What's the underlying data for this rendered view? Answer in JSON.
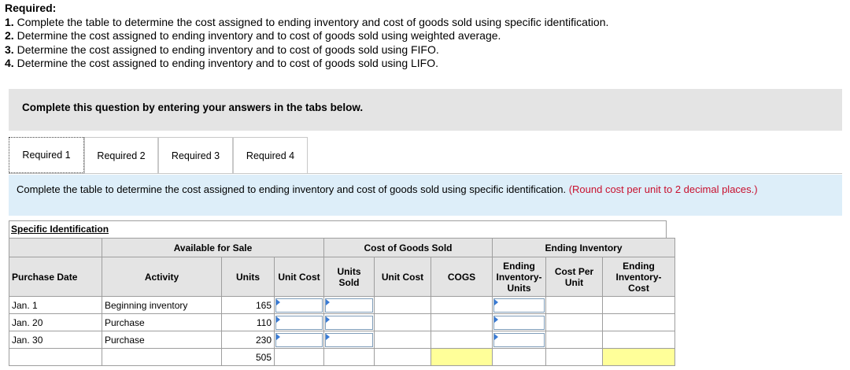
{
  "required": {
    "heading": "Required:",
    "items": [
      {
        "num": "1.",
        "text": " Complete the table to determine the cost assigned to ending inventory and cost of goods sold using specific identification."
      },
      {
        "num": "2.",
        "text": " Determine the cost assigned to ending inventory and to cost of goods sold using weighted average."
      },
      {
        "num": "3.",
        "text": " Determine the cost assigned to ending inventory and to cost of goods sold using FIFO."
      },
      {
        "num": "4.",
        "text": " Determine the cost assigned to ending inventory and to cost of goods sold using LIFO."
      }
    ]
  },
  "banner": "Complete this question by entering your answers in the tabs below.",
  "tabs": [
    "Required 1",
    "Required 2",
    "Required 3",
    "Required 4"
  ],
  "instruction": {
    "text": "Complete the table to determine the cost assigned to ending inventory and cost of goods sold using specific identification. ",
    "note": "(Round cost per unit to 2 decimal places.)"
  },
  "table": {
    "title": "Specific Identification",
    "groups": {
      "available": "Available for Sale",
      "cogs": "Cost of Goods Sold",
      "ending": "Ending Inventory"
    },
    "headers": {
      "purchase_date": "Purchase Date",
      "activity": "Activity",
      "units": "Units",
      "unit_cost": "Unit Cost",
      "units_sold": "Units Sold",
      "cogs_unit_cost": "Unit Cost",
      "cogs": "COGS",
      "ending_units": "Ending Inventory- Units",
      "cost_per_unit": "Cost Per Unit",
      "ending_cost": "Ending Inventory- Cost"
    },
    "rows": [
      {
        "date": "Jan. 1",
        "activity": "Beginning inventory",
        "units": "165"
      },
      {
        "date": "Jan. 20",
        "activity": "Purchase",
        "units": "110"
      },
      {
        "date": "Jan. 30",
        "activity": "Purchase",
        "units": "230"
      }
    ],
    "total_units": "505",
    "colors": {
      "header_bg": "#e4e4e4",
      "total_highlight": "#ffff99",
      "input_border": "#7f9db9"
    }
  }
}
